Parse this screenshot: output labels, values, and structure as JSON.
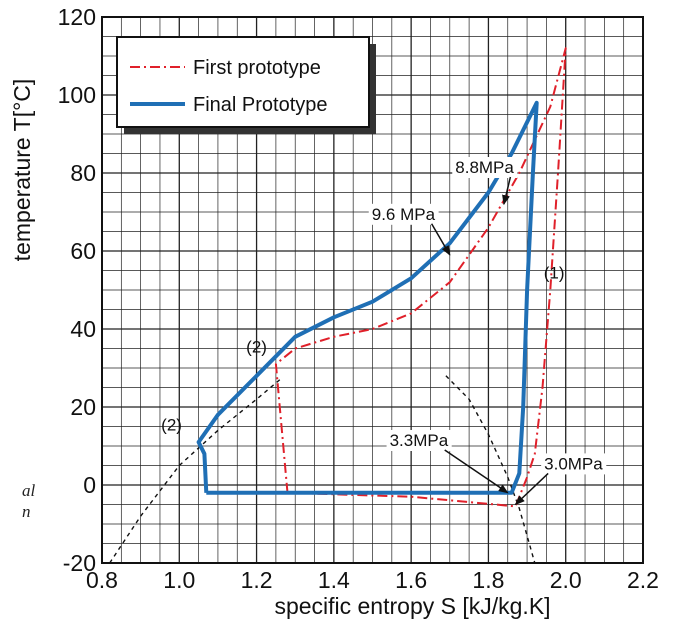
{
  "chart_data": {
    "type": "line",
    "title": "",
    "xlabel": "specific entropy S [kJ/kg.K]",
    "ylabel": "temperature T[°C]",
    "xlim": [
      0.8,
      2.2
    ],
    "ylim": [
      -20,
      120
    ],
    "xticks": [
      "0.8",
      "1.0",
      "1.2",
      "1.4",
      "1.6",
      "1.8",
      "2.0",
      "2.2"
    ],
    "yticks": [
      "-20",
      "0",
      "20",
      "40",
      "60",
      "80",
      "100",
      "120"
    ],
    "grid": true,
    "legend_position": "top-left",
    "series": [
      {
        "name": "First prototype",
        "color": "#e0202a",
        "style": "dash-dot",
        "points": [
          [
            1.28,
            -2
          ],
          [
            1.25,
            31
          ],
          [
            1.3,
            35
          ],
          [
            1.4,
            38
          ],
          [
            1.5,
            40
          ],
          [
            1.6,
            44
          ],
          [
            1.7,
            52
          ],
          [
            1.8,
            66
          ],
          [
            1.88,
            80
          ],
          [
            1.96,
            97
          ],
          [
            2.0,
            112
          ],
          [
            1.98,
            80
          ],
          [
            1.96,
            50
          ],
          [
            1.94,
            25
          ],
          [
            1.92,
            8
          ],
          [
            1.9,
            2
          ],
          [
            1.87,
            -5.5
          ],
          [
            1.6,
            -3
          ],
          [
            1.28,
            -2
          ]
        ]
      },
      {
        "name": "Final Prototype",
        "color": "#1f6fb5",
        "style": "solid",
        "points": [
          [
            1.07,
            -2
          ],
          [
            1.065,
            8
          ],
          [
            1.05,
            11
          ],
          [
            1.1,
            18
          ],
          [
            1.2,
            28
          ],
          [
            1.3,
            38
          ],
          [
            1.4,
            43
          ],
          [
            1.5,
            47
          ],
          [
            1.6,
            53
          ],
          [
            1.7,
            62
          ],
          [
            1.8,
            75
          ],
          [
            1.86,
            85
          ],
          [
            1.925,
            98
          ],
          [
            1.915,
            80
          ],
          [
            1.9,
            50
          ],
          [
            1.89,
            20
          ],
          [
            1.88,
            3
          ],
          [
            1.86,
            -2
          ],
          [
            1.07,
            -2
          ]
        ]
      },
      {
        "name": "",
        "color": "#111111",
        "style": "dashed",
        "points": [
          [
            0.82,
            -20
          ],
          [
            0.9,
            -8
          ],
          [
            1.0,
            5
          ],
          [
            1.1,
            14
          ],
          [
            1.2,
            22
          ],
          [
            1.26,
            27
          ]
        ]
      },
      {
        "name": "",
        "color": "#111111",
        "style": "dashed",
        "points": [
          [
            1.69,
            28
          ],
          [
            1.75,
            22
          ],
          [
            1.8,
            13
          ],
          [
            1.85,
            2
          ],
          [
            1.88,
            -6
          ],
          [
            1.92,
            -20
          ]
        ]
      }
    ],
    "annotations": [
      {
        "text": "8.8MPa",
        "at": [
          1.79,
          80
        ],
        "arrow_to": [
          1.84,
          72
        ]
      },
      {
        "text": "9.6 MPa",
        "at": [
          1.58,
          68
        ],
        "arrow_to": [
          1.7,
          59
        ]
      },
      {
        "text": "3.3MPa",
        "at": [
          1.62,
          10
        ],
        "arrow_to": [
          1.85,
          -2
        ]
      },
      {
        "text": "3.0MPa",
        "at": [
          2.02,
          4
        ],
        "arrow_to": [
          1.87,
          -5
        ]
      },
      {
        "text": "(1)",
        "at": [
          1.97,
          53
        ]
      },
      {
        "text": "(2)",
        "at": [
          1.2,
          34
        ]
      },
      {
        "text": "(2)",
        "at": [
          0.98,
          14
        ]
      }
    ]
  },
  "side_text": [
    "al",
    "n"
  ]
}
